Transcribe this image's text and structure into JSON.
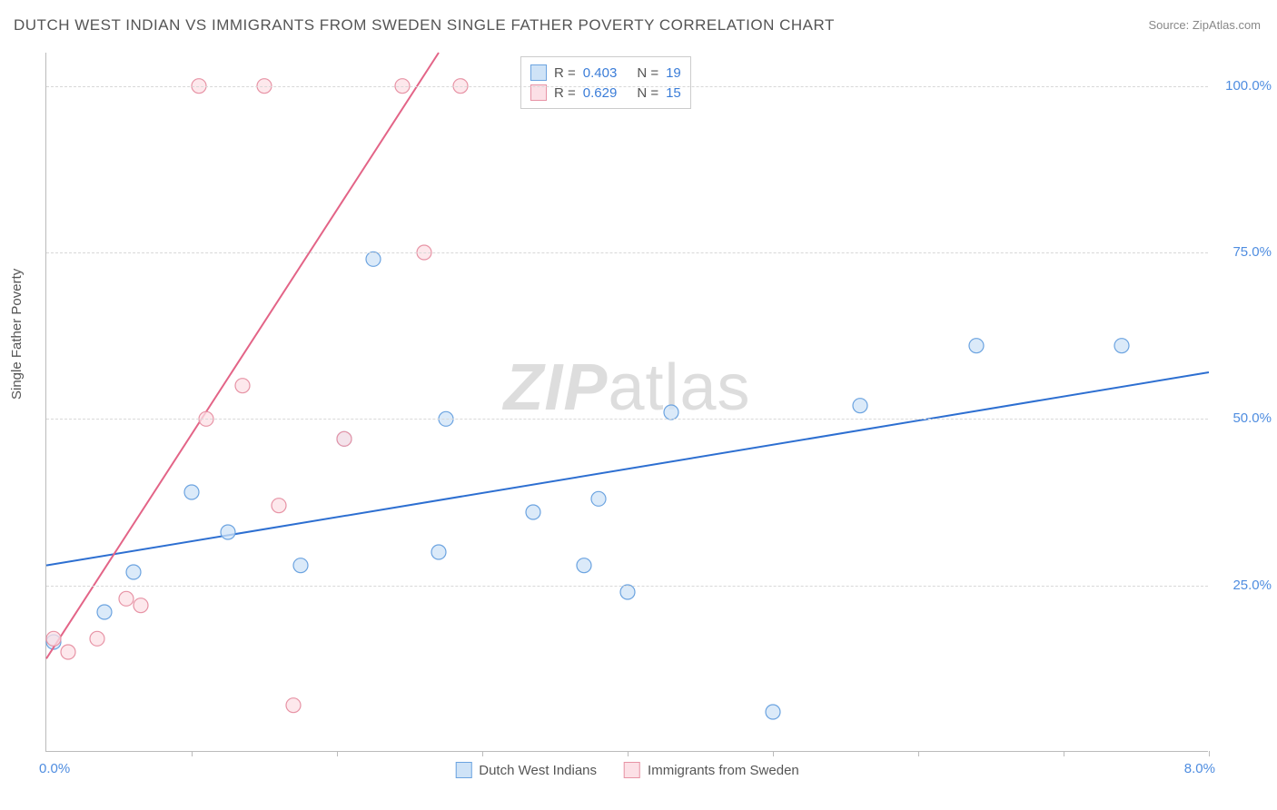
{
  "title": "DUTCH WEST INDIAN VS IMMIGRANTS FROM SWEDEN SINGLE FATHER POVERTY CORRELATION CHART",
  "source": "Source: ZipAtlas.com",
  "ylabel": "Single Father Poverty",
  "watermark_zip": "ZIP",
  "watermark_atlas": "atlas",
  "chart": {
    "type": "scatter",
    "xlim": [
      0.0,
      8.0
    ],
    "ylim": [
      0.0,
      105.0
    ],
    "yticks": [
      25.0,
      50.0,
      75.0,
      100.0
    ],
    "ytick_labels": [
      "25.0%",
      "50.0%",
      "75.0%",
      "100.0%"
    ],
    "xticks": [
      1.0,
      2.0,
      3.0,
      4.0,
      5.0,
      6.0,
      7.0,
      8.0
    ],
    "x_axis_labels": {
      "left": "0.0%",
      "right": "8.0%"
    },
    "background_color": "#ffffff",
    "grid_color": "#d8d8d8",
    "series": [
      {
        "name": "Dutch West Indians",
        "marker_color_fill": "#cfe3f7",
        "marker_color_stroke": "#6ba3e0",
        "marker_radius": 8,
        "line_color": "#2d6fd1",
        "line_width": 2,
        "R": 0.403,
        "N": 19,
        "points": [
          [
            0.05,
            16.5
          ],
          [
            0.4,
            21.0
          ],
          [
            0.6,
            27.0
          ],
          [
            1.0,
            39.0
          ],
          [
            1.25,
            33.0
          ],
          [
            1.75,
            28.0
          ],
          [
            2.05,
            47.0
          ],
          [
            2.25,
            74.0
          ],
          [
            2.7,
            30.0
          ],
          [
            2.75,
            50.0
          ],
          [
            3.35,
            36.0
          ],
          [
            3.7,
            28.0
          ],
          [
            3.8,
            38.0
          ],
          [
            4.0,
            24.0
          ],
          [
            4.3,
            51.0
          ],
          [
            5.0,
            6.0
          ],
          [
            5.6,
            52.0
          ],
          [
            6.4,
            61.0
          ],
          [
            7.4,
            61.0
          ]
        ],
        "trendline": {
          "x1": 0.0,
          "y1": 28.0,
          "x2": 8.0,
          "y2": 57.0
        }
      },
      {
        "name": "Immigrants from Sweden",
        "marker_color_fill": "#fce0e6",
        "marker_color_stroke": "#e793a5",
        "marker_radius": 8,
        "line_color": "#e36487",
        "line_width": 2,
        "R": 0.629,
        "N": 15,
        "points": [
          [
            0.05,
            17.0
          ],
          [
            0.15,
            15.0
          ],
          [
            0.35,
            17.0
          ],
          [
            0.55,
            23.0
          ],
          [
            0.65,
            22.0
          ],
          [
            1.1,
            50.0
          ],
          [
            1.05,
            100.0
          ],
          [
            1.5,
            100.0
          ],
          [
            1.35,
            55.0
          ],
          [
            1.6,
            37.0
          ],
          [
            1.7,
            7.0
          ],
          [
            2.05,
            47.0
          ],
          [
            2.45,
            100.0
          ],
          [
            2.6,
            75.0
          ],
          [
            2.85,
            100.0
          ]
        ],
        "trendline": {
          "x1": 0.0,
          "y1": 14.0,
          "x2": 2.7,
          "y2": 105.0
        }
      }
    ]
  },
  "legend_top": {
    "rows": [
      {
        "swatch_fill": "#cfe3f7",
        "swatch_stroke": "#6ba3e0",
        "r_label": "R =",
        "r_value": "0.403",
        "n_label": "N =",
        "n_value": "19"
      },
      {
        "swatch_fill": "#fce0e6",
        "swatch_stroke": "#e793a5",
        "r_label": "R =",
        "r_value": "0.629",
        "n_label": "N =",
        "n_value": "15"
      }
    ]
  },
  "legend_bottom": [
    {
      "swatch_fill": "#cfe3f7",
      "swatch_stroke": "#6ba3e0",
      "label": "Dutch West Indians"
    },
    {
      "swatch_fill": "#fce0e6",
      "swatch_stroke": "#e793a5",
      "label": "Immigrants from Sweden"
    }
  ]
}
